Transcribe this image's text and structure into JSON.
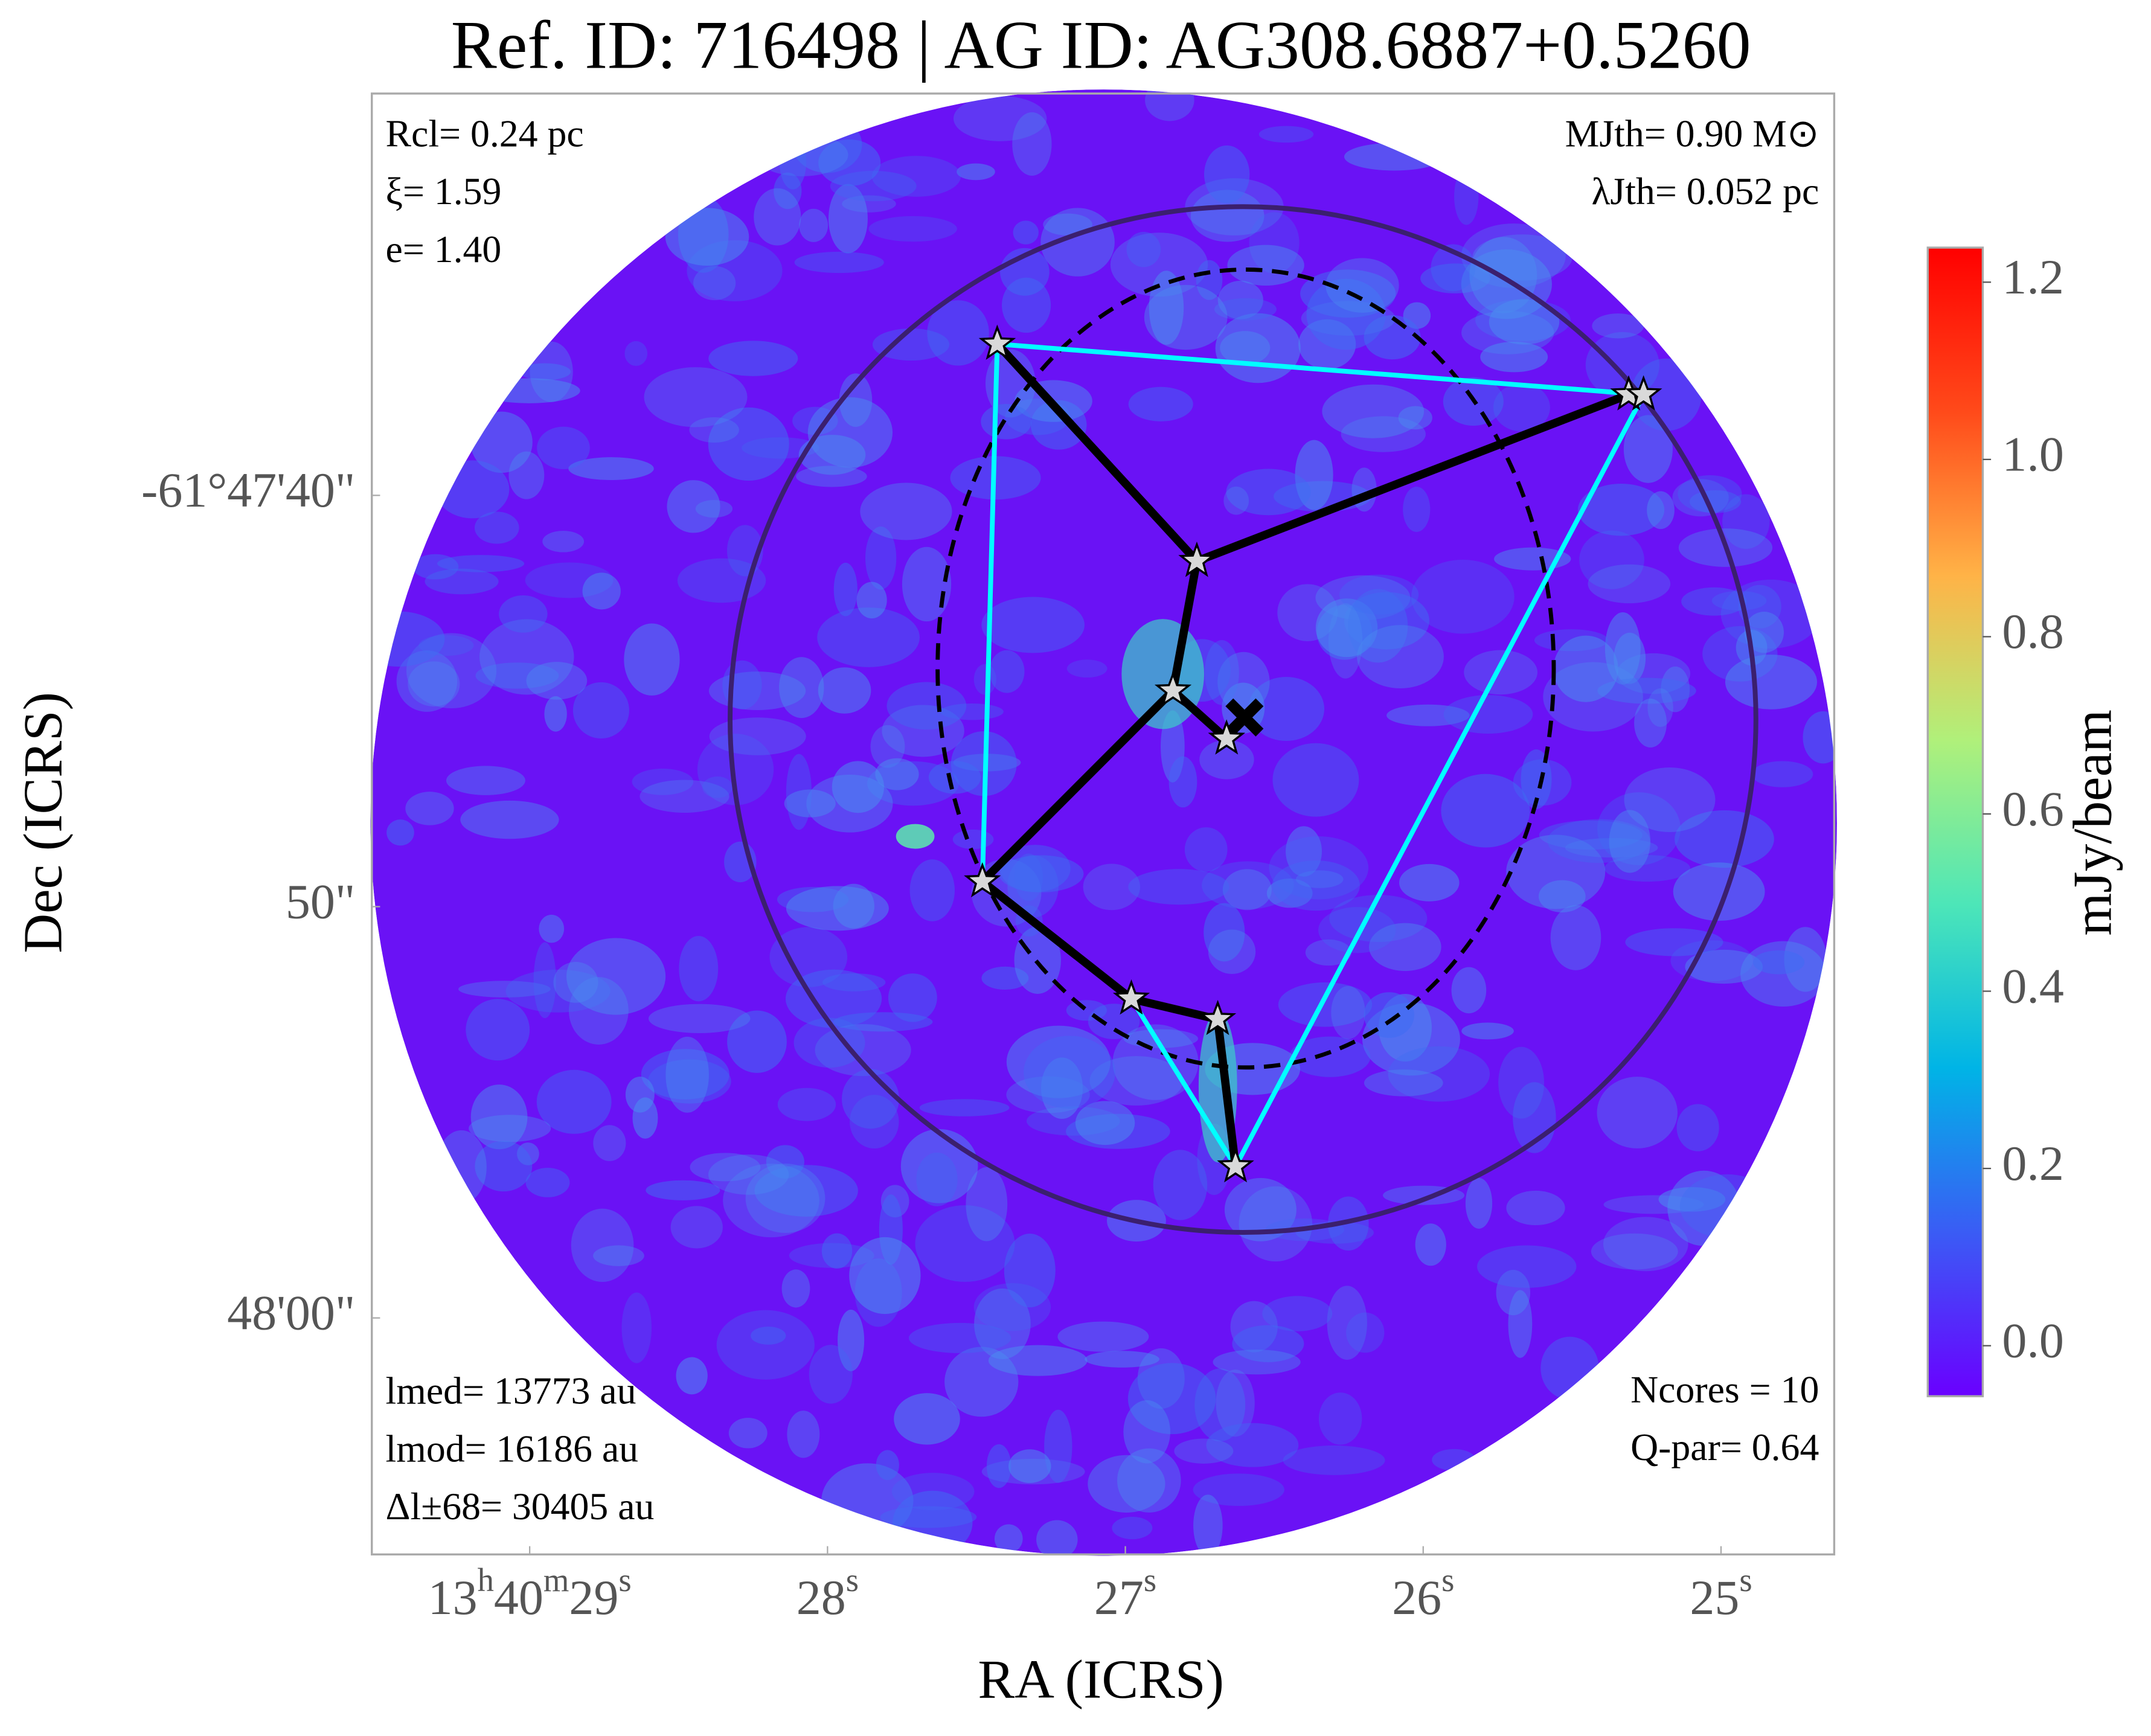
{
  "chart_data": {
    "type": "map",
    "title": "Ref. ID: 716498 | AG ID: AG308.6887+0.5260",
    "xlabel": "RA (ICRS)",
    "ylabel": "Dec (ICRS)",
    "xlim": [
      29.53,
      24.62
    ],
    "ylim": [
      30.23,
      65.75
    ],
    "xticks": [
      {
        "value": 29,
        "label": "13h40m29s"
      },
      {
        "value": 28,
        "label": "28s"
      },
      {
        "value": 27,
        "label": "27s"
      },
      {
        "value": 26,
        "label": "26s"
      },
      {
        "value": 25,
        "label": "25s"
      }
    ],
    "yticks": [
      {
        "value": 40,
        "label": "-61°47'40\""
      },
      {
        "value": 50,
        "label": "50\""
      },
      {
        "value": 60,
        "label": "48'00\""
      }
    ],
    "colorbar": {
      "label": "mJy/beam",
      "clim": [
        -0.057,
        1.239
      ],
      "ticks": [
        {
          "value": 0,
          "label": "0.0"
        },
        0.2,
        0.4,
        0.6,
        0.8,
        {
          "value": 1,
          "label": "1.0"
        },
        1.2
      ],
      "colors": [
        "#6a00ff",
        "#3a5cf5",
        "#00b4e6",
        "#4de6b8",
        "#b0f07a",
        "#ffb347",
        "#ff4a1a",
        "#ff0000"
      ]
    },
    "cores": {
      "ra": [
        27.43,
        25.31,
        25.26,
        26.76,
        26.84,
        26.66,
        27.48,
        26.98,
        26.69,
        26.63
      ],
      "dec": [
        36.32,
        37.55,
        37.55,
        41.6,
        44.75,
        45.92,
        49.39,
        52.24,
        52.74,
        56.32
      ],
      "color": "#d9d9d9"
    },
    "mst_edges": [
      [
        0,
        3
      ],
      [
        1,
        3
      ],
      [
        1,
        2
      ],
      [
        3,
        4
      ],
      [
        4,
        5
      ],
      [
        4,
        6
      ],
      [
        6,
        7
      ],
      [
        7,
        8
      ],
      [
        8,
        9
      ]
    ],
    "mst_color": "#000000",
    "hull": [
      0,
      2,
      9,
      7,
      6
    ],
    "hull_color": "#00ffff",
    "cluster_circle": {
      "ra": 26.605,
      "dec": 45.45,
      "radius": 12.47,
      "color": "#3b1f6e"
    },
    "ellipse": {
      "ra": 26.596,
      "dec": 44.21,
      "a": 7.49,
      "b": 9.7,
      "color": "#000000"
    },
    "center": {
      "ra": 26.6,
      "dec": 45.4
    },
    "annotations": {
      "top_left": [
        "Rcl= 0.24 pc",
        "ξ= 1.59",
        "e= 1.40"
      ],
      "top_right": [
        "MJth= 0.90 M⊙",
        "λJth= 0.052 pc"
      ],
      "bottom_left": [
        "lmed= 13773 au",
        "lmod= 16186 au",
        "Δl±68= 30405 au"
      ],
      "bottom_right": [
        "Ncores = 10",
        "Q-par= 0.64"
      ]
    }
  }
}
